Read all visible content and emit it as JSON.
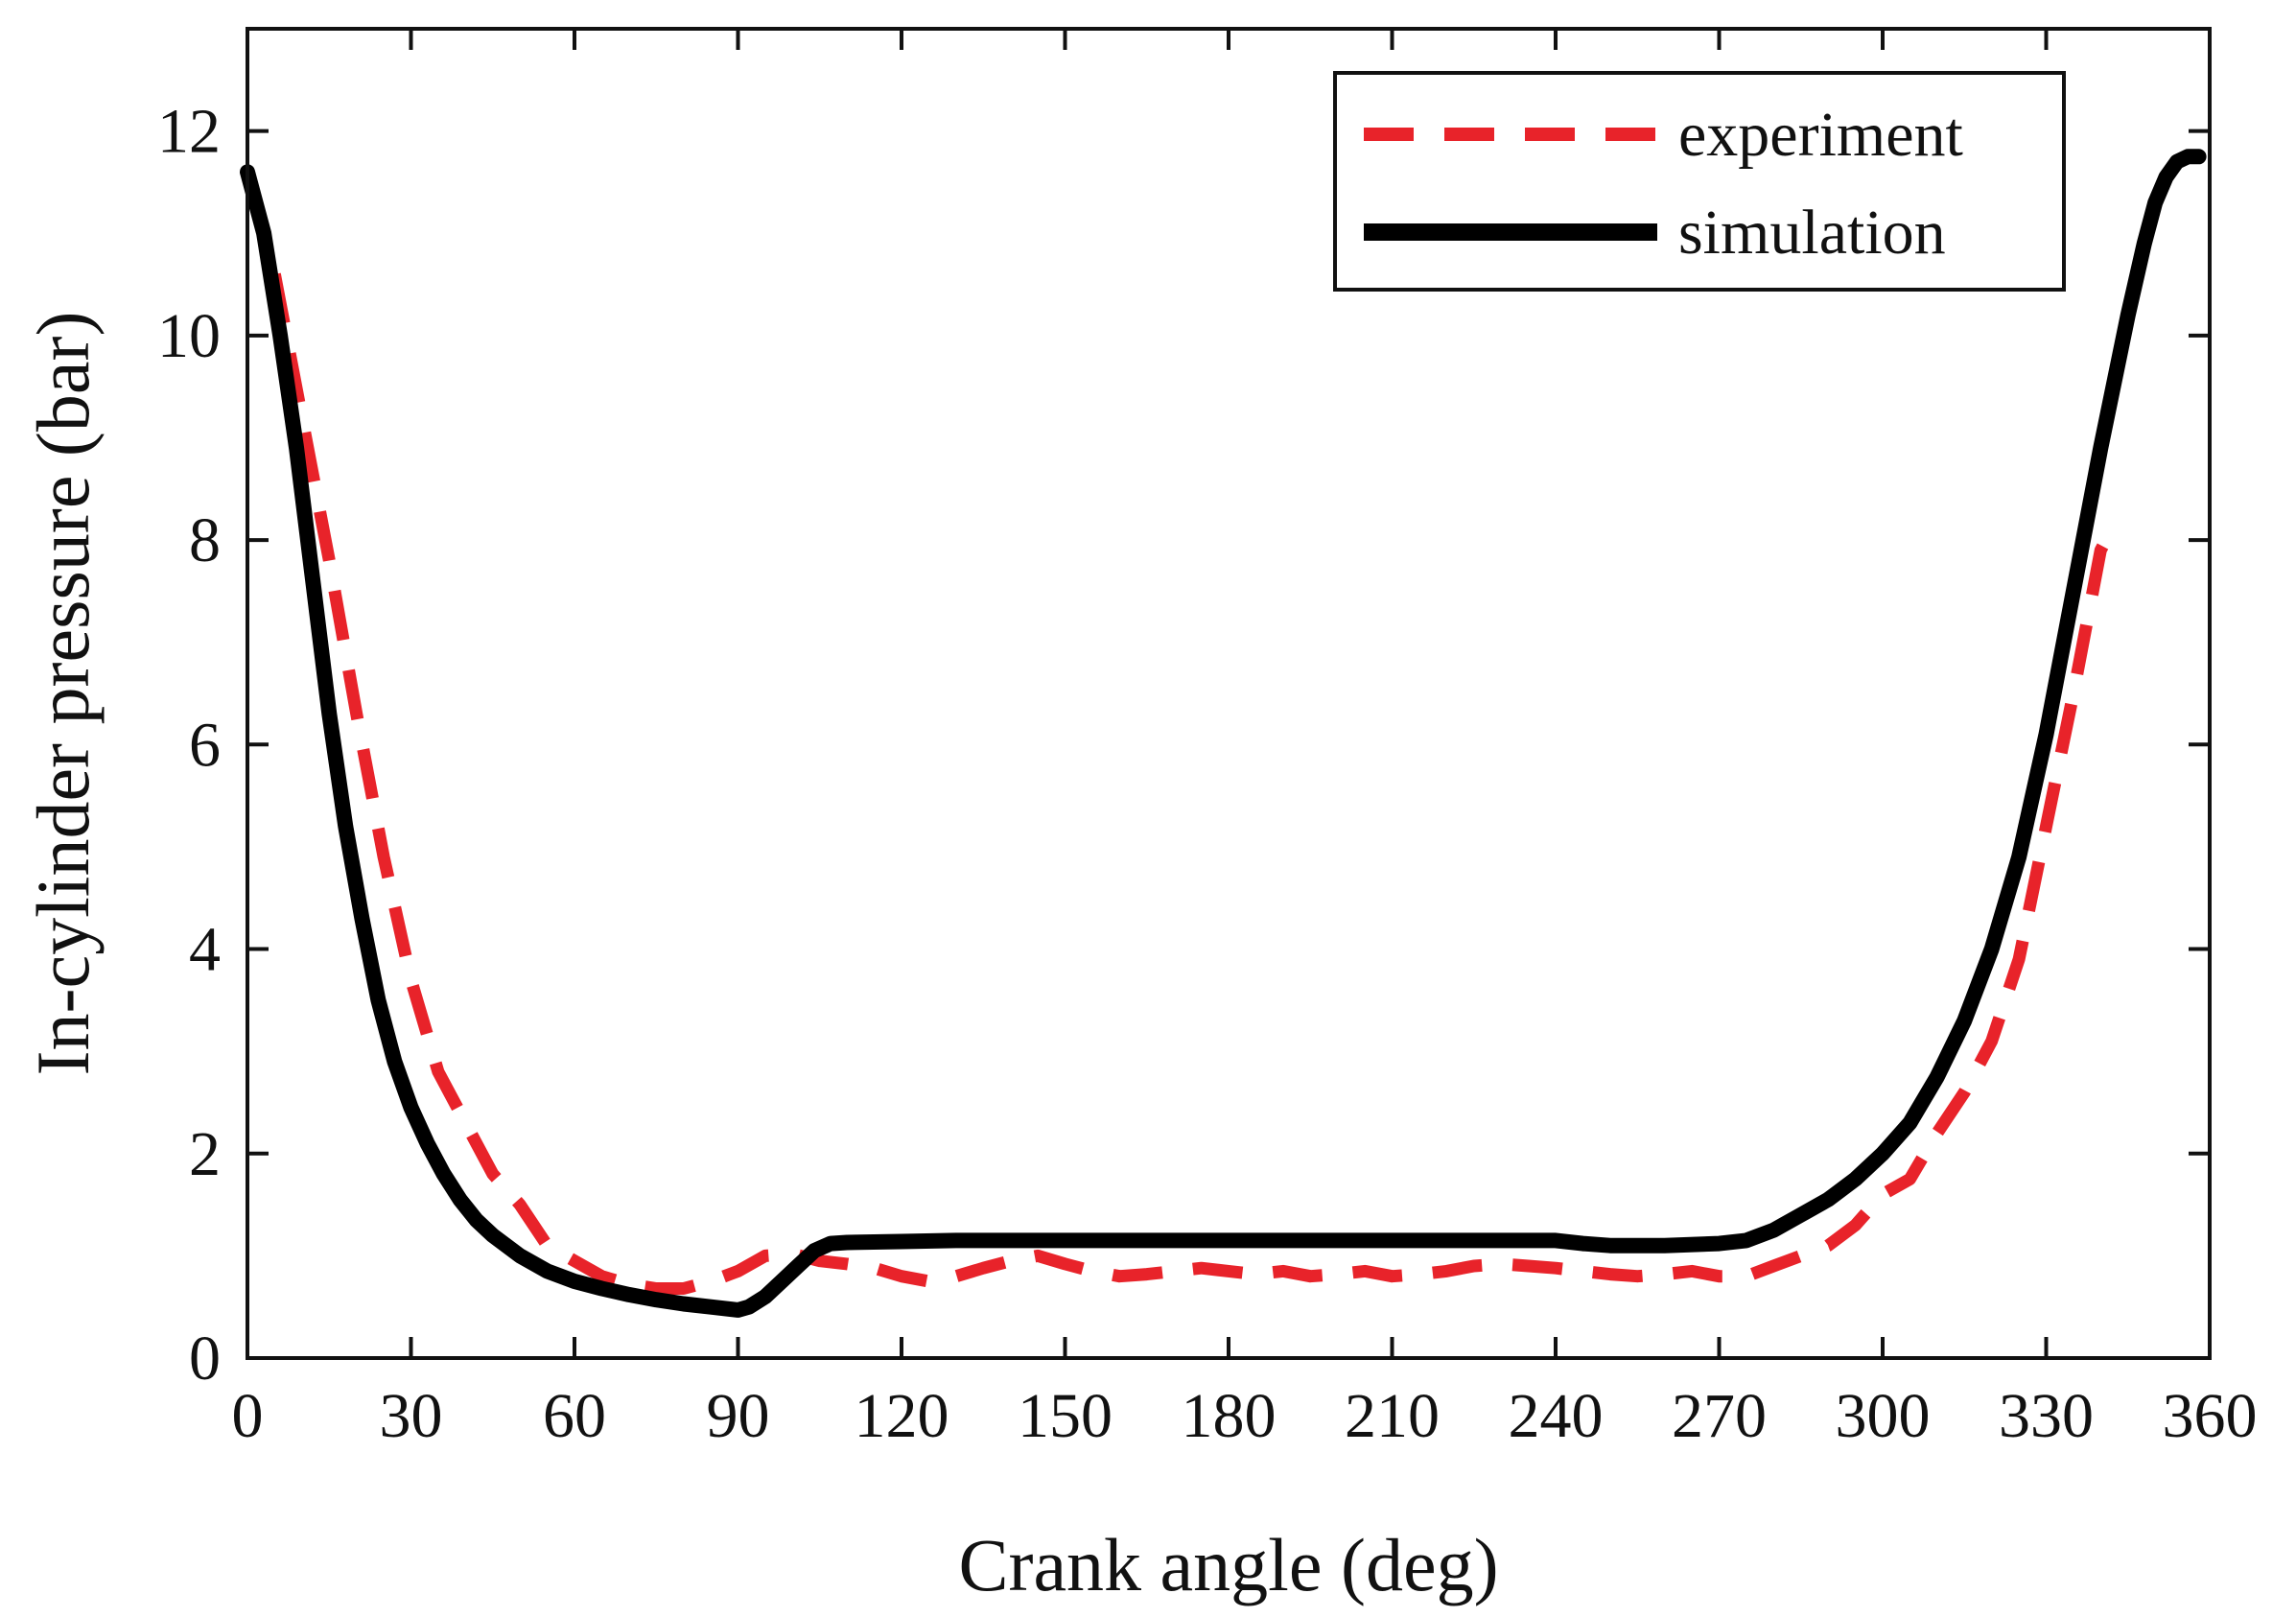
{
  "chart_data": {
    "type": "line",
    "title": "",
    "xlabel": "Crank angle (deg)",
    "ylabel": "In-cylinder pressure (bar)",
    "xlim": [
      0,
      360
    ],
    "ylim": [
      0,
      13
    ],
    "xticks": [
      0,
      30,
      60,
      90,
      120,
      150,
      180,
      210,
      240,
      270,
      300,
      330,
      360
    ],
    "yticks": [
      0,
      2,
      4,
      6,
      8,
      10,
      12
    ],
    "grid": false,
    "legend_position": "top-right",
    "colors": {
      "experiment": "#e8232a",
      "simulation": "#000000"
    },
    "series": [
      {
        "name": "experiment",
        "style": "dashed",
        "x": [
          5,
          10,
          15,
          20,
          25,
          30,
          35,
          40,
          45,
          50,
          55,
          60,
          65,
          70,
          75,
          80,
          85,
          90,
          95,
          100,
          105,
          110,
          115,
          120,
          125,
          130,
          135,
          140,
          145,
          150,
          155,
          160,
          165,
          170,
          175,
          180,
          185,
          190,
          195,
          200,
          205,
          210,
          215,
          220,
          225,
          230,
          235,
          240,
          245,
          250,
          255,
          260,
          265,
          270,
          275,
          280,
          285,
          290,
          295,
          300,
          305,
          310,
          315,
          320,
          325,
          330,
          335,
          340,
          343
        ],
        "y": [
          10.6,
          9.2,
          7.8,
          6.3,
          4.9,
          3.7,
          2.8,
          2.3,
          1.8,
          1.5,
          1.1,
          0.95,
          0.8,
          0.72,
          0.68,
          0.68,
          0.75,
          0.85,
          1.0,
          1.02,
          0.95,
          0.92,
          0.88,
          0.8,
          0.75,
          0.8,
          0.88,
          0.95,
          1.0,
          0.92,
          0.85,
          0.8,
          0.82,
          0.85,
          0.88,
          0.85,
          0.82,
          0.85,
          0.8,
          0.82,
          0.85,
          0.8,
          0.82,
          0.85,
          0.9,
          0.92,
          0.9,
          0.88,
          0.85,
          0.82,
          0.8,
          0.82,
          0.85,
          0.8,
          0.8,
          0.9,
          1.0,
          1.1,
          1.3,
          1.6,
          1.75,
          2.2,
          2.6,
          3.1,
          3.9,
          5.2,
          6.5,
          7.9,
          8.2
        ]
      },
      {
        "name": "simulation",
        "style": "solid",
        "x": [
          0,
          3,
          6,
          9,
          12,
          15,
          18,
          21,
          24,
          27,
          30,
          33,
          36,
          39,
          42,
          45,
          50,
          55,
          60,
          65,
          70,
          75,
          80,
          85,
          90,
          92,
          95,
          98,
          101,
          104,
          107,
          110,
          120,
          130,
          140,
          150,
          160,
          170,
          180,
          190,
          200,
          210,
          220,
          230,
          240,
          245,
          250,
          260,
          270,
          275,
          280,
          285,
          290,
          295,
          300,
          305,
          310,
          315,
          320,
          325,
          330,
          335,
          340,
          345,
          348,
          350,
          352,
          354,
          356,
          358
        ],
        "y": [
          11.6,
          11.0,
          10.0,
          8.9,
          7.6,
          6.3,
          5.2,
          4.3,
          3.5,
          2.9,
          2.45,
          2.1,
          1.8,
          1.55,
          1.35,
          1.2,
          1.0,
          0.85,
          0.75,
          0.68,
          0.62,
          0.57,
          0.53,
          0.5,
          0.47,
          0.5,
          0.6,
          0.75,
          0.9,
          1.05,
          1.12,
          1.13,
          1.14,
          1.15,
          1.15,
          1.15,
          1.15,
          1.15,
          1.15,
          1.15,
          1.15,
          1.15,
          1.15,
          1.15,
          1.15,
          1.12,
          1.1,
          1.1,
          1.12,
          1.15,
          1.25,
          1.4,
          1.55,
          1.75,
          2.0,
          2.3,
          2.75,
          3.3,
          4.0,
          4.9,
          6.1,
          7.5,
          8.9,
          10.2,
          10.9,
          11.3,
          11.55,
          11.7,
          11.75,
          11.75
        ]
      }
    ]
  }
}
